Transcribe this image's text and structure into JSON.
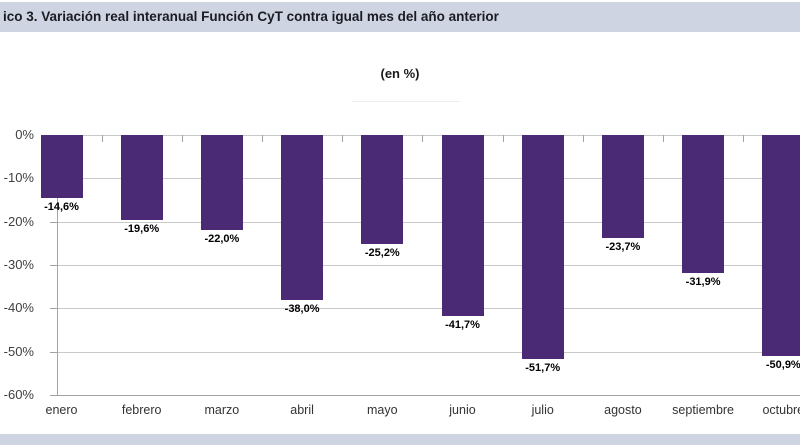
{
  "header": {
    "title": "ico 3. Variación real interanual Función CyT contra igual mes del año anterior"
  },
  "chart_data": {
    "type": "bar",
    "title": "ico 3. Variación real interanual Función CyT contra igual mes del año anterior",
    "subtitle": "(en %)",
    "categories": [
      "enero",
      "febrero",
      "marzo",
      "abril",
      "mayo",
      "junio",
      "julio",
      "agosto",
      "septiembre",
      "octubre"
    ],
    "values": [
      -14.6,
      -19.6,
      -22.0,
      -38.0,
      -25.2,
      -41.7,
      -51.7,
      -23.7,
      -31.9,
      -50.9
    ],
    "value_labels": [
      "-14,6%",
      "-19,6%",
      "-22,0%",
      "-38,0%",
      "-25,2%",
      "-41,7%",
      "-51,7%",
      "-23,7%",
      "-31,9%",
      "-50,9%"
    ],
    "xlabel": "",
    "ylabel": "",
    "ylim": [
      -60,
      0
    ],
    "y_tick_labels": [
      "0%",
      "-10%",
      "-20%",
      "-30%",
      "-40%",
      "-50%",
      "-60%"
    ],
    "grid": true,
    "legend_position": "none"
  },
  "colors": {
    "bar": "#4a2a75",
    "band": "#ced4e1",
    "gridline": "#c9c9c9",
    "axis": "#a3a3a3"
  }
}
